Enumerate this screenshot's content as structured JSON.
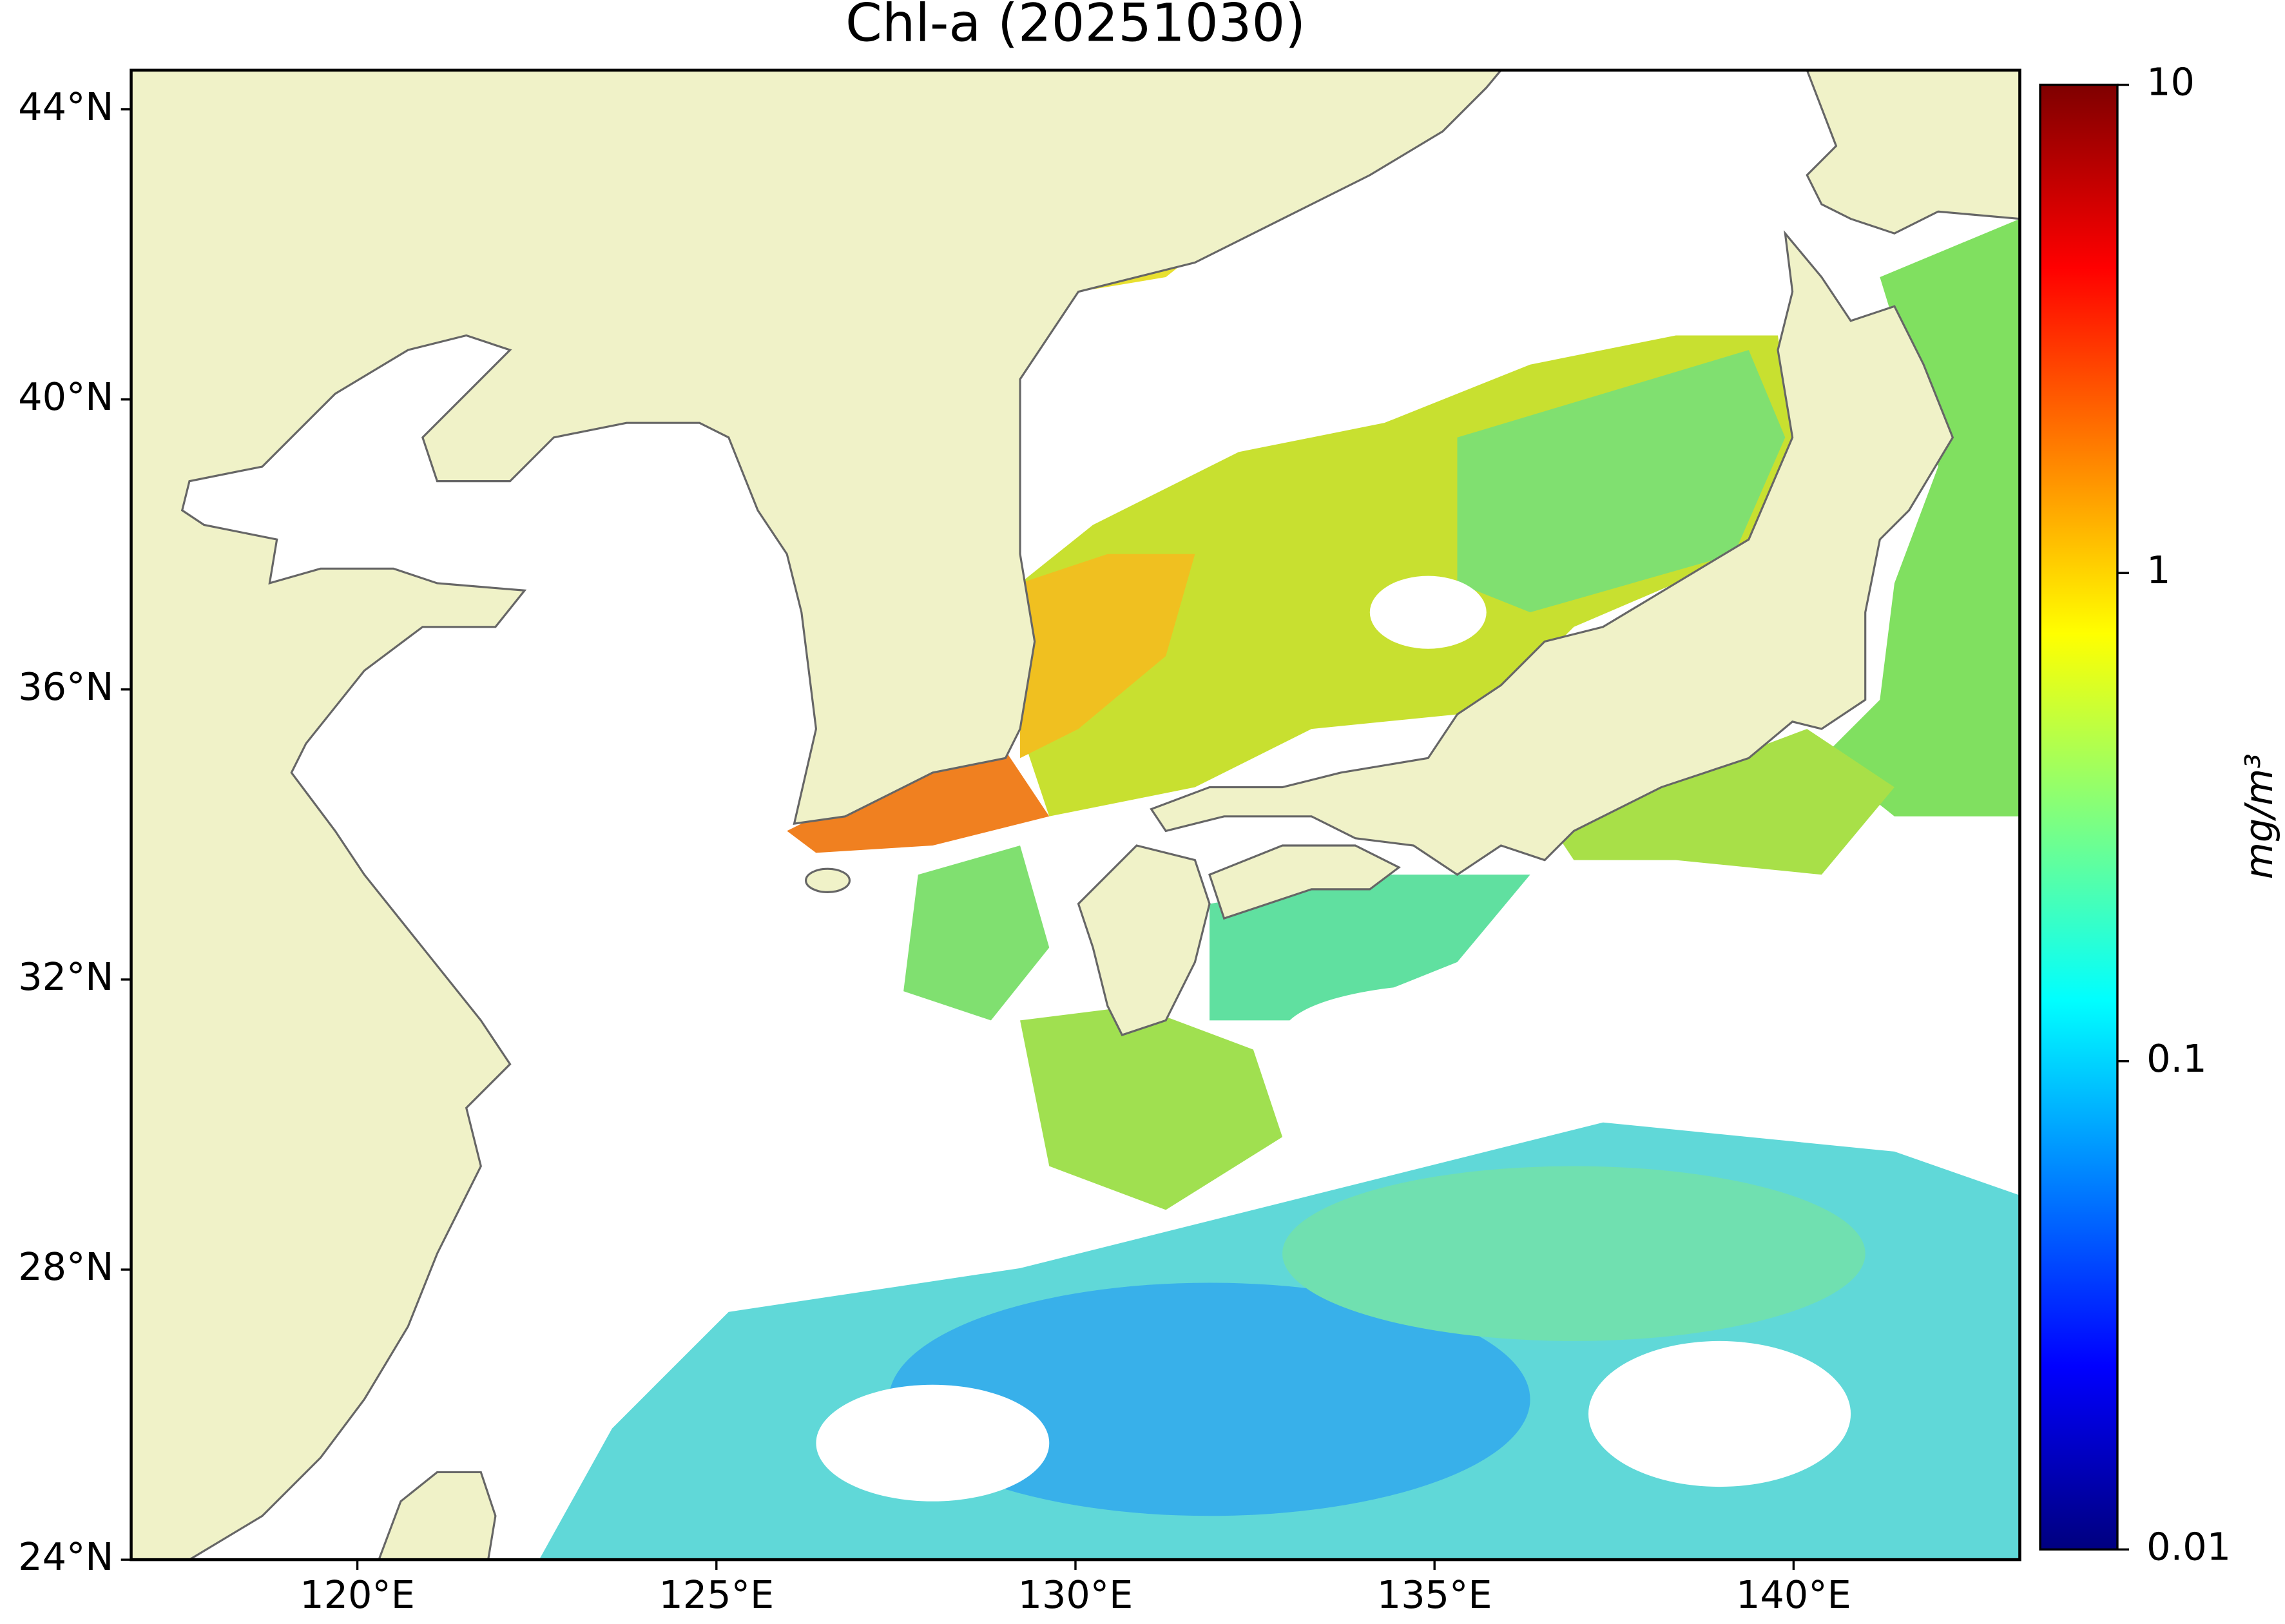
{
  "title": "Chl-a (20251030)",
  "map": {
    "lon_range": [
      116.85,
      143.15
    ],
    "lat_range": [
      24,
      44.54
    ],
    "lon_ticks": [
      {
        "value": 120,
        "label": "120°E"
      },
      {
        "value": 125,
        "label": "125°E"
      },
      {
        "value": 130,
        "label": "130°E"
      },
      {
        "value": 135,
        "label": "135°E"
      },
      {
        "value": 140,
        "label": "140°E"
      }
    ],
    "lat_ticks": [
      {
        "value": 24,
        "label": "24°N"
      },
      {
        "value": 28,
        "label": "28°N"
      },
      {
        "value": 32,
        "label": "32°N"
      },
      {
        "value": 36,
        "label": "36°N"
      },
      {
        "value": 40,
        "label": "40°N"
      },
      {
        "value": 44,
        "label": "44°N"
      }
    ]
  },
  "colorbar": {
    "label": "mg/m³",
    "scale": "log",
    "range": [
      0.01,
      10
    ],
    "ticks": [
      0.01,
      0.1,
      1,
      10
    ],
    "colormap": "jet"
  }
}
